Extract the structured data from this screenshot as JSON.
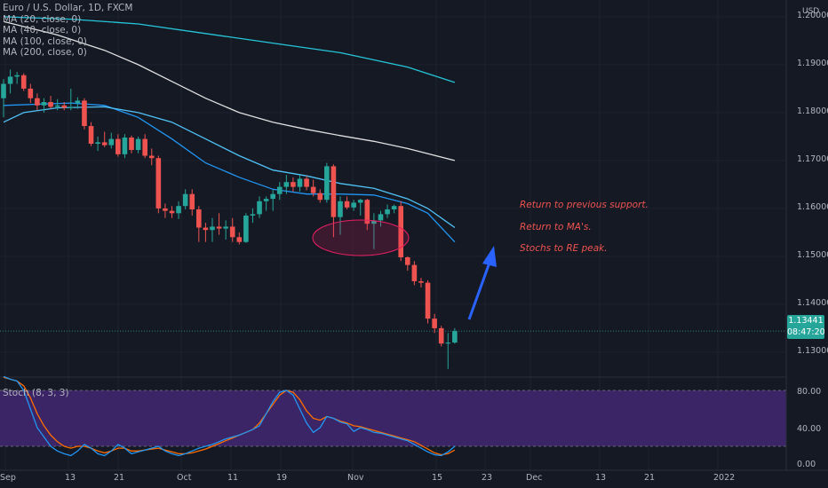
{
  "legend": {
    "title": "Euro / U.S. Dollar, 1D, FXCM",
    "ma_lines": [
      "MA (20, close, 0)",
      "MA (40, close, 0)",
      "MA (100, close, 0)",
      "MA (200, close, 0)"
    ]
  },
  "stoch_legend": "Stoch (8, 3, 3)",
  "currency": "USD",
  "price_box": {
    "price": "1.13441",
    "countdown": "08:47:20"
  },
  "annotations": [
    "Return to previous support.",
    "Return to MA's.",
    "Stochs to RE peak."
  ],
  "price_axis_labels": [
    "1.20000",
    "1.19000",
    "1.18000",
    "1.17000",
    "1.16000",
    "1.15000",
    "1.14000",
    "1.13000"
  ],
  "stoch_axis_labels": [
    "80.00",
    "40.00",
    "0.00"
  ],
  "x_axis_labels": [
    "Sep",
    "13",
    "21",
    "Oct",
    "11",
    "19",
    "Nov",
    "15",
    "23",
    "Dec",
    "13",
    "21",
    "2022"
  ],
  "colors": {
    "up": "#26a69a",
    "down": "#ef5350",
    "ma_20": "#2196f3",
    "ma_40": "#4fc3f7",
    "ma_100": "#e0e0e0",
    "ma_200": "#26c6da",
    "stoch_k": "#2196f3",
    "stoch_d": "#ff6d00",
    "stoch_band": "#7e57c2",
    "arrow": "#2962ff"
  },
  "chart_data": {
    "type": "candlestick",
    "symbol": "EURUSD",
    "timeframe": "1D",
    "ylim": [
      1.1248,
      1.2035
    ],
    "candles": [
      {
        "o": 1.183,
        "h": 1.187,
        "l": 1.179,
        "c": 1.186
      },
      {
        "o": 1.186,
        "h": 1.189,
        "l": 1.184,
        "c": 1.1875
      },
      {
        "o": 1.1875,
        "h": 1.1885,
        "l": 1.186,
        "c": 1.1878
      },
      {
        "o": 1.1878,
        "h": 1.1882,
        "l": 1.1845,
        "c": 1.185
      },
      {
        "o": 1.185,
        "h": 1.186,
        "l": 1.182,
        "c": 1.183
      },
      {
        "o": 1.183,
        "h": 1.184,
        "l": 1.1805,
        "c": 1.1815
      },
      {
        "o": 1.1815,
        "h": 1.183,
        "l": 1.18,
        "c": 1.1822
      },
      {
        "o": 1.1822,
        "h": 1.1835,
        "l": 1.1808,
        "c": 1.1812
      },
      {
        "o": 1.1812,
        "h": 1.1828,
        "l": 1.1805,
        "c": 1.1815
      },
      {
        "o": 1.1815,
        "h": 1.1822,
        "l": 1.1805,
        "c": 1.181
      },
      {
        "o": 1.181,
        "h": 1.185,
        "l": 1.1805,
        "c": 1.1812
      },
      {
        "o": 1.182,
        "h": 1.1832,
        "l": 1.1808,
        "c": 1.1825
      },
      {
        "o": 1.1825,
        "h": 1.183,
        "l": 1.1765,
        "c": 1.1772
      },
      {
        "o": 1.1772,
        "h": 1.178,
        "l": 1.173,
        "c": 1.1735
      },
      {
        "o": 1.1735,
        "h": 1.175,
        "l": 1.172,
        "c": 1.1738
      },
      {
        "o": 1.1738,
        "h": 1.176,
        "l": 1.1728,
        "c": 1.1732
      },
      {
        "o": 1.1732,
        "h": 1.1758,
        "l": 1.1725,
        "c": 1.1745
      },
      {
        "o": 1.1745,
        "h": 1.1755,
        "l": 1.1708,
        "c": 1.1713
      },
      {
        "o": 1.1713,
        "h": 1.1755,
        "l": 1.1705,
        "c": 1.1748
      },
      {
        "o": 1.1748,
        "h": 1.1752,
        "l": 1.1715,
        "c": 1.1722
      },
      {
        "o": 1.1722,
        "h": 1.175,
        "l": 1.1715,
        "c": 1.1745
      },
      {
        "o": 1.1745,
        "h": 1.1755,
        "l": 1.1705,
        "c": 1.171
      },
      {
        "o": 1.171,
        "h": 1.1725,
        "l": 1.169,
        "c": 1.1705
      },
      {
        "o": 1.1705,
        "h": 1.171,
        "l": 1.159,
        "c": 1.16
      },
      {
        "o": 1.16,
        "h": 1.161,
        "l": 1.158,
        "c": 1.1595
      },
      {
        "o": 1.1595,
        "h": 1.1605,
        "l": 1.158,
        "c": 1.159
      },
      {
        "o": 1.159,
        "h": 1.1615,
        "l": 1.1578,
        "c": 1.1605
      },
      {
        "o": 1.1605,
        "h": 1.164,
        "l": 1.1598,
        "c": 1.163
      },
      {
        "o": 1.163,
        "h": 1.164,
        "l": 1.1585,
        "c": 1.1598
      },
      {
        "o": 1.1598,
        "h": 1.1605,
        "l": 1.153,
        "c": 1.156
      },
      {
        "o": 1.156,
        "h": 1.157,
        "l": 1.153,
        "c": 1.1555
      },
      {
        "o": 1.1555,
        "h": 1.158,
        "l": 1.153,
        "c": 1.1562
      },
      {
        "o": 1.1562,
        "h": 1.159,
        "l": 1.1545,
        "c": 1.1558
      },
      {
        "o": 1.1558,
        "h": 1.1575,
        "l": 1.1535,
        "c": 1.1562
      },
      {
        "o": 1.1562,
        "h": 1.158,
        "l": 1.153,
        "c": 1.154
      },
      {
        "o": 1.154,
        "h": 1.155,
        "l": 1.1525,
        "c": 1.153
      },
      {
        "o": 1.153,
        "h": 1.159,
        "l": 1.1528,
        "c": 1.1585
      },
      {
        "o": 1.1585,
        "h": 1.16,
        "l": 1.157,
        "c": 1.1588
      },
      {
        "o": 1.1588,
        "h": 1.1625,
        "l": 1.158,
        "c": 1.1615
      },
      {
        "o": 1.1615,
        "h": 1.1625,
        "l": 1.1595,
        "c": 1.162
      },
      {
        "o": 1.162,
        "h": 1.164,
        "l": 1.1595,
        "c": 1.163
      },
      {
        "o": 1.163,
        "h": 1.1655,
        "l": 1.1618,
        "c": 1.1645
      },
      {
        "o": 1.1645,
        "h": 1.167,
        "l": 1.163,
        "c": 1.1655
      },
      {
        "o": 1.1655,
        "h": 1.1665,
        "l": 1.1635,
        "c": 1.1645
      },
      {
        "o": 1.1645,
        "h": 1.167,
        "l": 1.1635,
        "c": 1.1662
      },
      {
        "o": 1.1662,
        "h": 1.1668,
        "l": 1.1638,
        "c": 1.1645
      },
      {
        "o": 1.1645,
        "h": 1.166,
        "l": 1.1625,
        "c": 1.1632
      },
      {
        "o": 1.1632,
        "h": 1.164,
        "l": 1.1612,
        "c": 1.1618
      },
      {
        "o": 1.1618,
        "h": 1.1695,
        "l": 1.1612,
        "c": 1.1688
      },
      {
        "o": 1.1688,
        "h": 1.1692,
        "l": 1.154,
        "c": 1.1582
      },
      {
        "o": 1.1582,
        "h": 1.1625,
        "l": 1.1545,
        "c": 1.1615
      },
      {
        "o": 1.1615,
        "h": 1.1625,
        "l": 1.1598,
        "c": 1.1602
      },
      {
        "o": 1.1602,
        "h": 1.1618,
        "l": 1.1595,
        "c": 1.1612
      },
      {
        "o": 1.1612,
        "h": 1.162,
        "l": 1.1585,
        "c": 1.1618
      },
      {
        "o": 1.1618,
        "h": 1.162,
        "l": 1.1555,
        "c": 1.1568
      },
      {
        "o": 1.1568,
        "h": 1.159,
        "l": 1.1515,
        "c": 1.1575
      },
      {
        "o": 1.1575,
        "h": 1.1595,
        "l": 1.1562,
        "c": 1.1588
      },
      {
        "o": 1.1588,
        "h": 1.1608,
        "l": 1.158,
        "c": 1.1598
      },
      {
        "o": 1.1598,
        "h": 1.1608,
        "l": 1.159,
        "c": 1.1605
      },
      {
        "o": 1.1605,
        "h": 1.1615,
        "l": 1.149,
        "c": 1.1498
      },
      {
        "o": 1.1498,
        "h": 1.15,
        "l": 1.147,
        "c": 1.1482
      },
      {
        "o": 1.1482,
        "h": 1.149,
        "l": 1.144,
        "c": 1.1448
      },
      {
        "o": 1.1448,
        "h": 1.1455,
        "l": 1.1435,
        "c": 1.1445
      },
      {
        "o": 1.1445,
        "h": 1.145,
        "l": 1.136,
        "c": 1.137
      },
      {
        "o": 1.137,
        "h": 1.138,
        "l": 1.134,
        "c": 1.135
      },
      {
        "o": 1.135,
        "h": 1.1355,
        "l": 1.1312,
        "c": 1.1318
      },
      {
        "o": 1.1318,
        "h": 1.134,
        "l": 1.1265,
        "c": 1.132
      },
      {
        "o": 1.132,
        "h": 1.135,
        "l": 1.1318,
        "c": 1.1344
      }
    ],
    "moving_averages": [
      {
        "name": "MA (20, close, 0)",
        "points": [
          [
            0,
            1.1815
          ],
          [
            10,
            1.182
          ],
          [
            15,
            1.1815
          ],
          [
            20,
            1.179
          ],
          [
            25,
            1.1745
          ],
          [
            30,
            1.1695
          ],
          [
            35,
            1.1665
          ],
          [
            40,
            1.164
          ],
          [
            45,
            1.163
          ],
          [
            50,
            1.163
          ],
          [
            55,
            1.1628
          ],
          [
            60,
            1.161
          ],
          [
            63,
            1.159
          ],
          [
            67,
            1.153
          ]
        ]
      },
      {
        "name": "MA (40, close, 0)",
        "points": [
          [
            0,
            1.178
          ],
          [
            3,
            1.18
          ],
          [
            8,
            1.181
          ],
          [
            15,
            1.1812
          ],
          [
            20,
            1.18
          ],
          [
            25,
            1.178
          ],
          [
            30,
            1.1745
          ],
          [
            35,
            1.171
          ],
          [
            40,
            1.168
          ],
          [
            45,
            1.1668
          ],
          [
            50,
            1.1652
          ],
          [
            55,
            1.1642
          ],
          [
            60,
            1.162
          ],
          [
            63,
            1.16
          ],
          [
            67,
            1.156
          ]
        ]
      },
      {
        "name": "MA (100, close, 0)",
        "points": [
          [
            0,
            1.199
          ],
          [
            8,
            1.1962
          ],
          [
            15,
            1.193
          ],
          [
            20,
            1.19
          ],
          [
            25,
            1.1865
          ],
          [
            30,
            1.183
          ],
          [
            35,
            1.18
          ],
          [
            40,
            1.178
          ],
          [
            45,
            1.1765
          ],
          [
            50,
            1.1752
          ],
          [
            55,
            1.174
          ],
          [
            60,
            1.1725
          ],
          [
            67,
            1.17
          ]
        ]
      },
      {
        "name": "MA (200, close, 0)",
        "points": [
          [
            0,
            1.2
          ],
          [
            10,
            1.1995
          ],
          [
            20,
            1.1985
          ],
          [
            30,
            1.1965
          ],
          [
            40,
            1.1945
          ],
          [
            50,
            1.1925
          ],
          [
            60,
            1.1895
          ],
          [
            67,
            1.1863
          ]
        ]
      }
    ],
    "stochastic": {
      "name": "Stoch (8, 3, 3)",
      "upper_band": 80,
      "lower_band": 20,
      "ylim": [
        0,
        100
      ],
      "k": [
        95,
        92,
        90,
        80,
        60,
        40,
        30,
        20,
        15,
        12,
        10,
        15,
        22,
        18,
        12,
        10,
        15,
        22,
        18,
        12,
        14,
        16,
        18,
        20,
        15,
        12,
        10,
        12,
        15,
        18,
        20,
        22,
        25,
        28,
        30,
        32,
        35,
        38,
        42,
        55,
        68,
        78,
        80,
        75,
        60,
        45,
        35,
        40,
        52,
        50,
        46,
        44,
        36,
        40,
        38,
        35,
        34,
        32,
        30,
        28,
        26,
        22,
        18,
        14,
        11,
        10,
        14,
        20
      ],
      "d": [
        94,
        92,
        90,
        85,
        72,
        55,
        42,
        32,
        25,
        20,
        18,
        20,
        20,
        18,
        15,
        13,
        15,
        18,
        18,
        15,
        15,
        16,
        17,
        18,
        16,
        14,
        12,
        12,
        13,
        15,
        17,
        20,
        23,
        26,
        29,
        32,
        35,
        38,
        45,
        55,
        65,
        75,
        80,
        78,
        70,
        58,
        50,
        48,
        52,
        50,
        47,
        45,
        42,
        41,
        39,
        37,
        35,
        33,
        31,
        29,
        27,
        25,
        21,
        17,
        13,
        11,
        12,
        16
      ]
    },
    "annotations": {
      "ellipse_price_range": [
        1.151,
        1.158
      ],
      "arrow": "up"
    }
  }
}
